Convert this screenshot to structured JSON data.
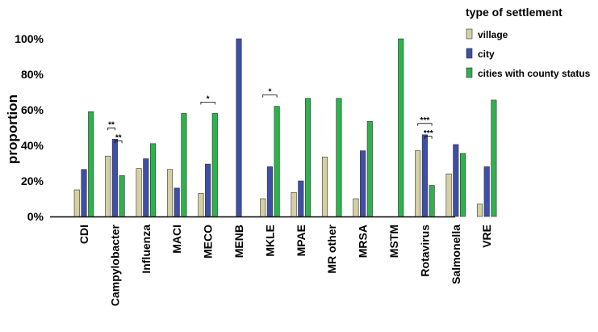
{
  "chart_data": {
    "type": "bar",
    "ylabel": "proportion",
    "ylim": [
      0,
      100
    ],
    "yticks": [
      "0%",
      "20%",
      "40%",
      "60%",
      "80%",
      "100%"
    ],
    "legend_title": "type of settlement",
    "legend_position": "top-right",
    "categories": [
      "CDI",
      "Campylobacter",
      "Influenza",
      "MACI",
      "MECO",
      "MENB",
      "MKLE",
      "MPAE",
      "MR other",
      "MRSA",
      "MSTM",
      "Rotavirus",
      "Salmonella",
      "VRE"
    ],
    "series": [
      {
        "name": "village",
        "color": "#d5d0a3",
        "values": [
          15,
          34,
          27,
          26.5,
          13,
          0,
          10,
          13.5,
          33.5,
          10,
          0,
          37,
          24,
          7
        ]
      },
      {
        "name": "city",
        "color": "#3f4fa6",
        "values": [
          26.5,
          43.5,
          32.5,
          16,
          29.5,
          100,
          28,
          20,
          0,
          37,
          0,
          46,
          40.5,
          28
        ]
      },
      {
        "name": "cities with county status",
        "color": "#2eb24c",
        "values": [
          59,
          23,
          41,
          58,
          58,
          0,
          62,
          66.5,
          66.5,
          53.5,
          100,
          17.5,
          35.5,
          65.5
        ]
      }
    ],
    "annotations": [
      {
        "category": "Campylobacter",
        "text": "**",
        "from": "village",
        "to": "city"
      },
      {
        "category": "Campylobacter",
        "text": "**",
        "from": "city",
        "to": "cities with county status"
      },
      {
        "category": "MECO",
        "text": "*",
        "from": "village",
        "to": "cities with county status"
      },
      {
        "category": "MKLE",
        "text": "*",
        "from": "village",
        "to": "cities with county status"
      },
      {
        "category": "Rotavirus",
        "text": "***",
        "from": "village",
        "to": "cities with county status"
      },
      {
        "category": "Rotavirus",
        "text": "***",
        "from": "city",
        "to": "cities with county status"
      }
    ]
  }
}
